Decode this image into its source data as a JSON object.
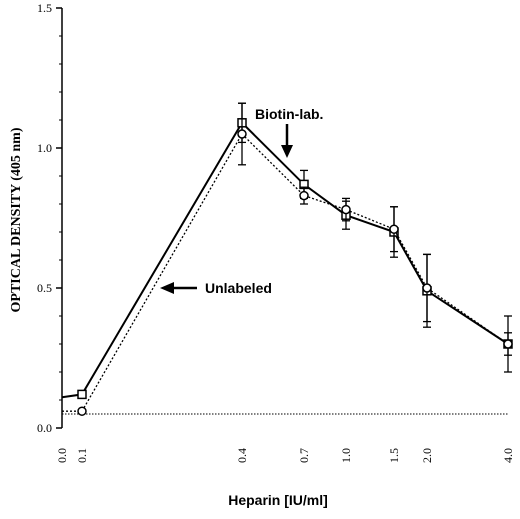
{
  "chart_data": {
    "type": "line",
    "xlabel": "Heparin [IU/ml]",
    "ylabel": "OPTICAL DENSITY (405 nm)",
    "ylim": [
      0.0,
      1.5
    ],
    "y_ticks": [
      "0.0",
      "0.5",
      "1.0",
      "1.5"
    ],
    "x_ticks": [
      "0.0",
      "0.1",
      "0.4",
      "0.7",
      "1.0",
      "1.5",
      "2.0",
      "4.0"
    ],
    "x_scale": "nonlinear",
    "baseline_value": 0.05,
    "series": [
      {
        "name": "Biotin-lab.",
        "marker": "square",
        "line_style": "solid",
        "x": [
          0.0,
          0.1,
          0.4,
          0.7,
          1.0,
          1.5,
          2.0,
          4.0
        ],
        "y": [
          0.11,
          0.12,
          1.09,
          0.87,
          0.76,
          0.7,
          0.49,
          0.3
        ],
        "error": [
          null,
          null,
          0.07,
          0.05,
          0.05,
          0.09,
          0.13,
          0.1
        ]
      },
      {
        "name": "Unlabeled",
        "marker": "circle",
        "line_style": "dotted",
        "x": [
          0.0,
          0.1,
          0.4,
          0.7,
          1.0,
          1.5,
          2.0,
          4.0
        ],
        "y": [
          0.06,
          0.06,
          1.05,
          0.83,
          0.78,
          0.71,
          0.5,
          0.3
        ],
        "error": [
          null,
          null,
          0.11,
          0.03,
          0.04,
          0.08,
          0.12,
          0.04
        ]
      }
    ],
    "annotations": [
      {
        "text": "Biotin-lab.",
        "target_series": "Biotin-lab.",
        "arrow": "down"
      },
      {
        "text": "Unlabeled",
        "target_series": "Unlabeled",
        "arrow": "left"
      }
    ],
    "grid": false,
    "legend": "none"
  }
}
